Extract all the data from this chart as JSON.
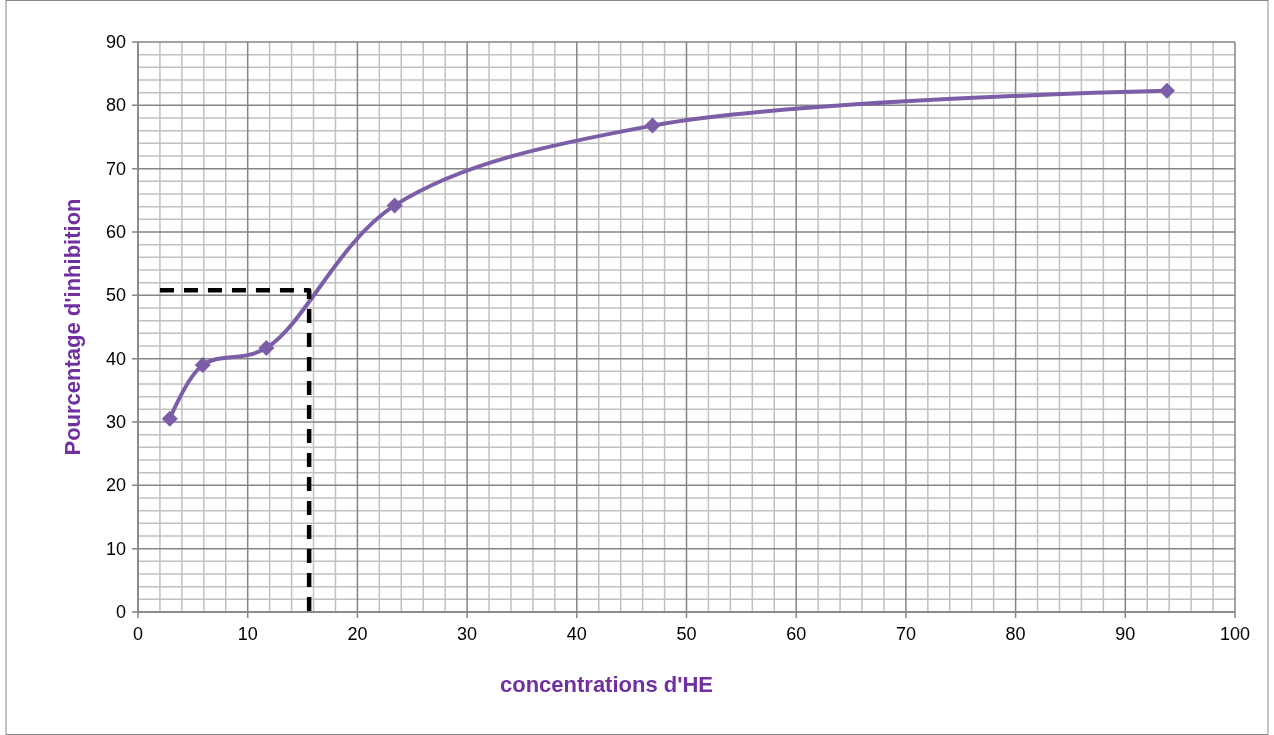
{
  "chart_data": {
    "type": "line",
    "xlabel": "concentrations d'HE",
    "ylabel": "Pourcentage d'inhibition",
    "xlim": [
      0,
      100
    ],
    "xticks": [
      0,
      10,
      20,
      30,
      40,
      50,
      60,
      70,
      80,
      90,
      100
    ],
    "ylim": [
      0,
      90
    ],
    "yticks": [
      0,
      10,
      20,
      30,
      40,
      50,
      60,
      70,
      80,
      90
    ],
    "grid": true,
    "series": [
      {
        "color": "#7b5ea7",
        "marker": "diamond",
        "line_style": "solid",
        "x": [
          2.9,
          5.9,
          11.7,
          23.4,
          46.9,
          93.8
        ],
        "values": [
          30.5,
          39,
          41.7,
          64.2,
          76.8,
          82.3
        ]
      },
      {
        "color": "#000000",
        "marker": "none",
        "line_style": "dashed",
        "x": [
          2,
          15.6,
          15.6
        ],
        "values": [
          50.8,
          50.8,
          0
        ]
      }
    ]
  }
}
